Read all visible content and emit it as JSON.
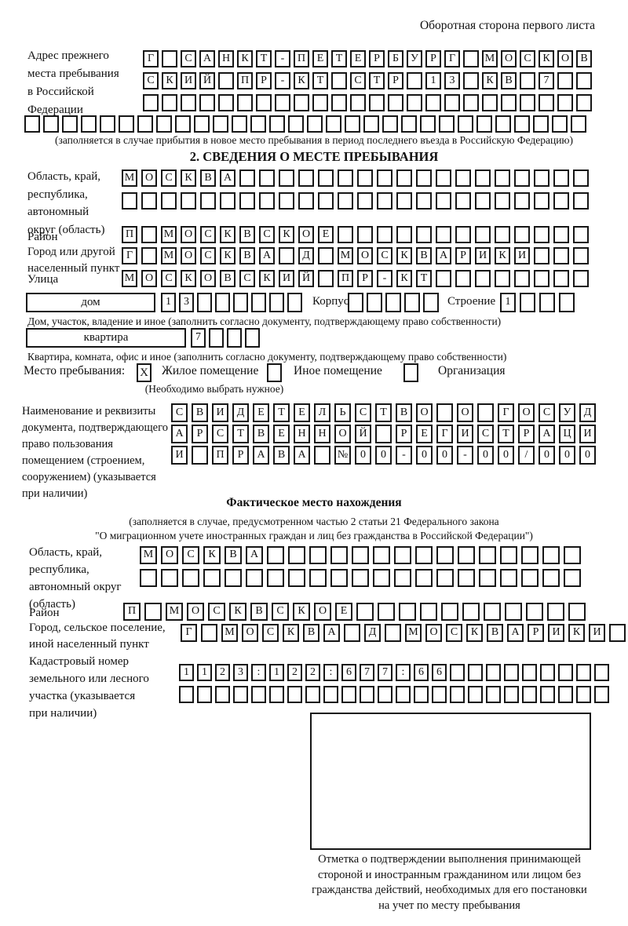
{
  "page": {
    "header_note": "Оборотная сторона первого листа"
  },
  "prev_address": {
    "label": [
      "Адрес прежнего",
      "места пребывания",
      "в Российской",
      "Федерации"
    ],
    "rows": [
      {
        "len": 24,
        "text": "Г САНКТ-ПЕТЕРБУРГ МОСКОВ"
      },
      {
        "len": 24,
        "text": "СКИЙ ПР-КТ СТР 13 КВ 7"
      },
      {
        "len": 24,
        "text": ""
      },
      {
        "len": 30,
        "text": ""
      }
    ],
    "note": "(заполняется в случае прибытия в новое место пребывания в период последнего въезда в Российскую Федерацию)"
  },
  "section2": {
    "title": "2. СВЕДЕНИЯ О МЕСТЕ ПРЕБЫВАНИЯ",
    "oblast": {
      "label": [
        "Область, край,",
        "республика,",
        "автономный",
        "округ (область)"
      ],
      "rows": [
        {
          "len": 24,
          "text": "МОСКВА"
        },
        {
          "len": 24,
          "text": ""
        }
      ]
    },
    "raion": {
      "label": "Район",
      "row": {
        "len": 24,
        "text": "П МОСКВСКОЕ"
      }
    },
    "gorod": {
      "label": [
        "Город или другой",
        "населенный пункт"
      ],
      "row": {
        "len": 24,
        "text": "Г МОСКВА Д МОСКВАРИКИ"
      }
    },
    "ulitsa": {
      "label": "Улица",
      "row": {
        "len": 24,
        "text": "МОСКОВСКИЙ ПР-КТ"
      }
    },
    "dom": {
      "label": "дом",
      "cells": {
        "len": 8,
        "text": "13"
      },
      "korpus_label": "Корпус",
      "korpus_cells": {
        "len": 5,
        "text": ""
      },
      "stroenie_label": "Строение",
      "stroenie_cells": {
        "len": 4,
        "text": "1"
      }
    },
    "dom_note": "Дом, участок, владение и иное (заполнить согласно документу, подтверждающему право собственности)",
    "kvartira": {
      "label": "квартира",
      "cells": {
        "len": 4,
        "text": "7"
      }
    },
    "kvartira_note": "Квартира, комната, офис и иное (заполнить согласно документу, подтверждающему право собственности)",
    "residence": {
      "label": "Место пребывания:",
      "options": [
        {
          "mark": "X",
          "label": "Жилое помещение"
        },
        {
          "mark": "",
          "label": "Иное помещение"
        },
        {
          "mark": "",
          "label": "Организация"
        }
      ],
      "note": "(Необходимо выбрать нужное)"
    },
    "document": {
      "label": [
        "Наименование и реквизиты",
        "документа, подтверждающего",
        "право пользования",
        "помещением (строением,",
        "сооружением) (указывается",
        "при наличии)"
      ],
      "rows": [
        {
          "len": 21,
          "text": "СВИДЕТЕЛЬСТВО О ГОСУД"
        },
        {
          "len": 21,
          "text": "АРСТВЕННОЙ РЕГИСТРАЦИ"
        },
        {
          "len": 21,
          "text": "И ПРАВА №00-00-00/000"
        }
      ]
    }
  },
  "factual": {
    "title": "Фактическое место нахождения",
    "note_line1": "(заполняется в случае, предусмотренном частью 2 статьи 21 Федерального закона",
    "note_line2": "\"О миграционном учете иностранных граждан и лиц без гражданства в Российской Федерации\")",
    "oblast": {
      "label": [
        "Область, край,",
        "республика,",
        "автономный округ",
        "(область)"
      ],
      "rows": [
        {
          "len": 21,
          "text": "МОСКВА"
        },
        {
          "len": 21,
          "text": ""
        }
      ]
    },
    "raion": {
      "label": "Район",
      "row": {
        "len": 22,
        "text": "П МОСКВСКОЕ"
      }
    },
    "gorod": {
      "label": [
        "Город, сельское поселение,",
        "иной населенный пункт"
      ],
      "row": {
        "len": 22,
        "text": "Г МОСКВА Д МОСКВАРИКИ"
      }
    },
    "kadastr": {
      "label": [
        "Кадастровый номер",
        "земельного или лесного",
        "участка (указывается",
        "при наличии)"
      ],
      "rows": [
        {
          "len": 24,
          "text": "1123:122:677:66"
        },
        {
          "len": 24,
          "text": ""
        }
      ]
    },
    "stamp_note": [
      "Отметка о подтверждении выполнения принимающей",
      "стороной и иностранным гражданином или лицом без",
      "гражданства действий, необходимых для его постановки",
      "на учет по месту пребывания"
    ]
  }
}
